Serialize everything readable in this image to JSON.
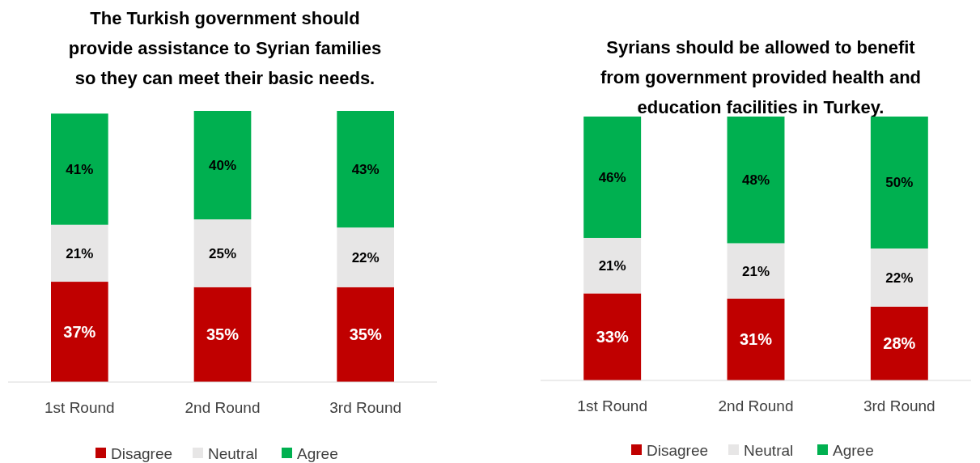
{
  "chart_data": [
    {
      "type": "bar",
      "stacked": true,
      "legend": "bottom",
      "title": "The Turkish government should\nprovide assistance to Syrian families\nso they can meet their basic needs.",
      "categories": [
        "1st Round",
        "2nd Round",
        "3rd Round"
      ],
      "series": [
        {
          "name": "Disagree",
          "color": "#c00000",
          "values": [
            37,
            35,
            35
          ],
          "value_labels": [
            "37%",
            "35%",
            "35%"
          ]
        },
        {
          "name": "Neutral",
          "color": "#e7e6e6",
          "values": [
            21,
            25,
            22
          ],
          "value_labels": [
            "21%",
            "25%",
            "22%"
          ]
        },
        {
          "name": "Agree",
          "color": "#00b050",
          "values": [
            41,
            40,
            43
          ],
          "value_labels": [
            "41%",
            "40%",
            "43%"
          ]
        }
      ]
    },
    {
      "type": "bar",
      "stacked": true,
      "legend": "bottom",
      "title": "Syrians should be allowed to benefit\nfrom government provided health and\neducation facilities in Turkey.",
      "categories": [
        "1st Round",
        "2nd Round",
        "3rd Round"
      ],
      "series": [
        {
          "name": "Disagree",
          "color": "#c00000",
          "values": [
            33,
            31,
            28
          ],
          "value_labels": [
            "33%",
            "31%",
            "28%"
          ]
        },
        {
          "name": "Neutral",
          "color": "#e7e6e6",
          "values": [
            21,
            21,
            22
          ],
          "value_labels": [
            "21%",
            "21%",
            "22%"
          ]
        },
        {
          "name": "Agree",
          "color": "#00b050",
          "values": [
            46,
            48,
            50
          ],
          "value_labels": [
            "46%",
            "48%",
            "50%"
          ]
        }
      ]
    }
  ]
}
